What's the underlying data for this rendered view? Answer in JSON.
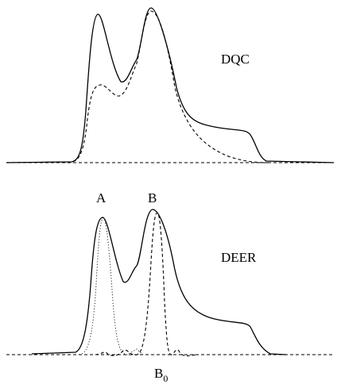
{
  "panels": [
    {
      "label": "DQC"
    },
    {
      "label": "DEER"
    }
  ],
  "peaks": [
    {
      "label": "A"
    },
    {
      "label": "B"
    }
  ],
  "field": {
    "base": "B",
    "subscript": "0"
  }
}
